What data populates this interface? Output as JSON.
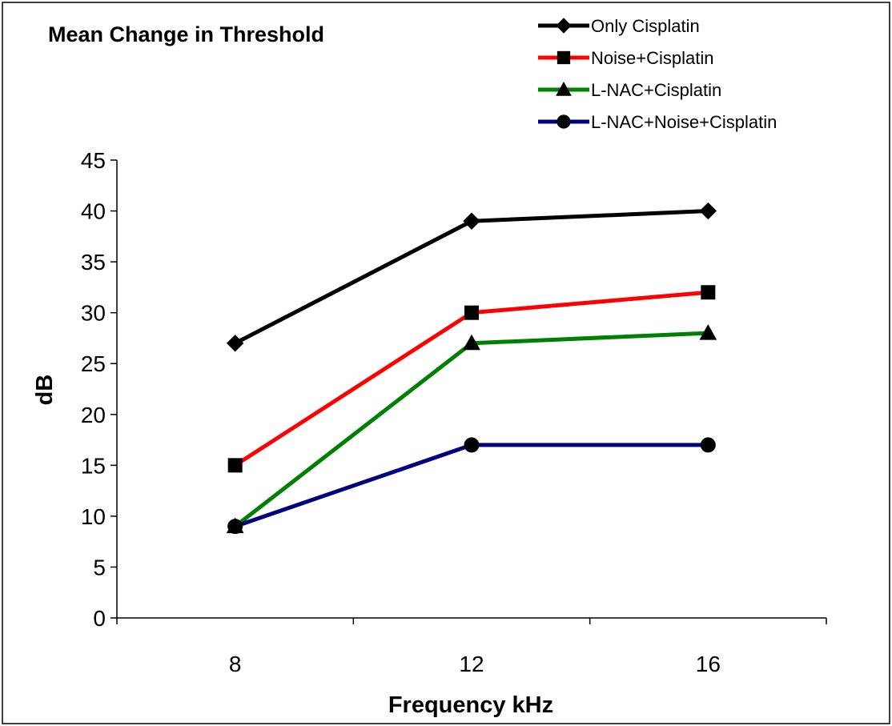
{
  "chart_data": {
    "type": "line",
    "title": "Mean Change in Threshold",
    "xlabel": "Frequency kHz",
    "ylabel": "dB",
    "categories": [
      "8",
      "12",
      "16"
    ],
    "ylim": [
      0,
      45
    ],
    "yticks": [
      0,
      5,
      10,
      15,
      20,
      25,
      30,
      35,
      40,
      45
    ],
    "grid": false,
    "legend_position": "top-right",
    "series": [
      {
        "name": "Only Cisplatin",
        "values": [
          27,
          39,
          40
        ],
        "color": "#000000",
        "marker": "diamond"
      },
      {
        "name": "Noise+Cisplatin",
        "values": [
          15,
          30,
          32
        ],
        "color": "#ff0000",
        "marker": "square"
      },
      {
        "name": "L-NAC+Cisplatin",
        "values": [
          9,
          27,
          28
        ],
        "color": "#008000",
        "marker": "triangle"
      },
      {
        "name": "L-NAC+Noise+Cisplatin",
        "values": [
          9,
          17,
          17
        ],
        "color": "#000080",
        "marker": "circle"
      }
    ]
  }
}
